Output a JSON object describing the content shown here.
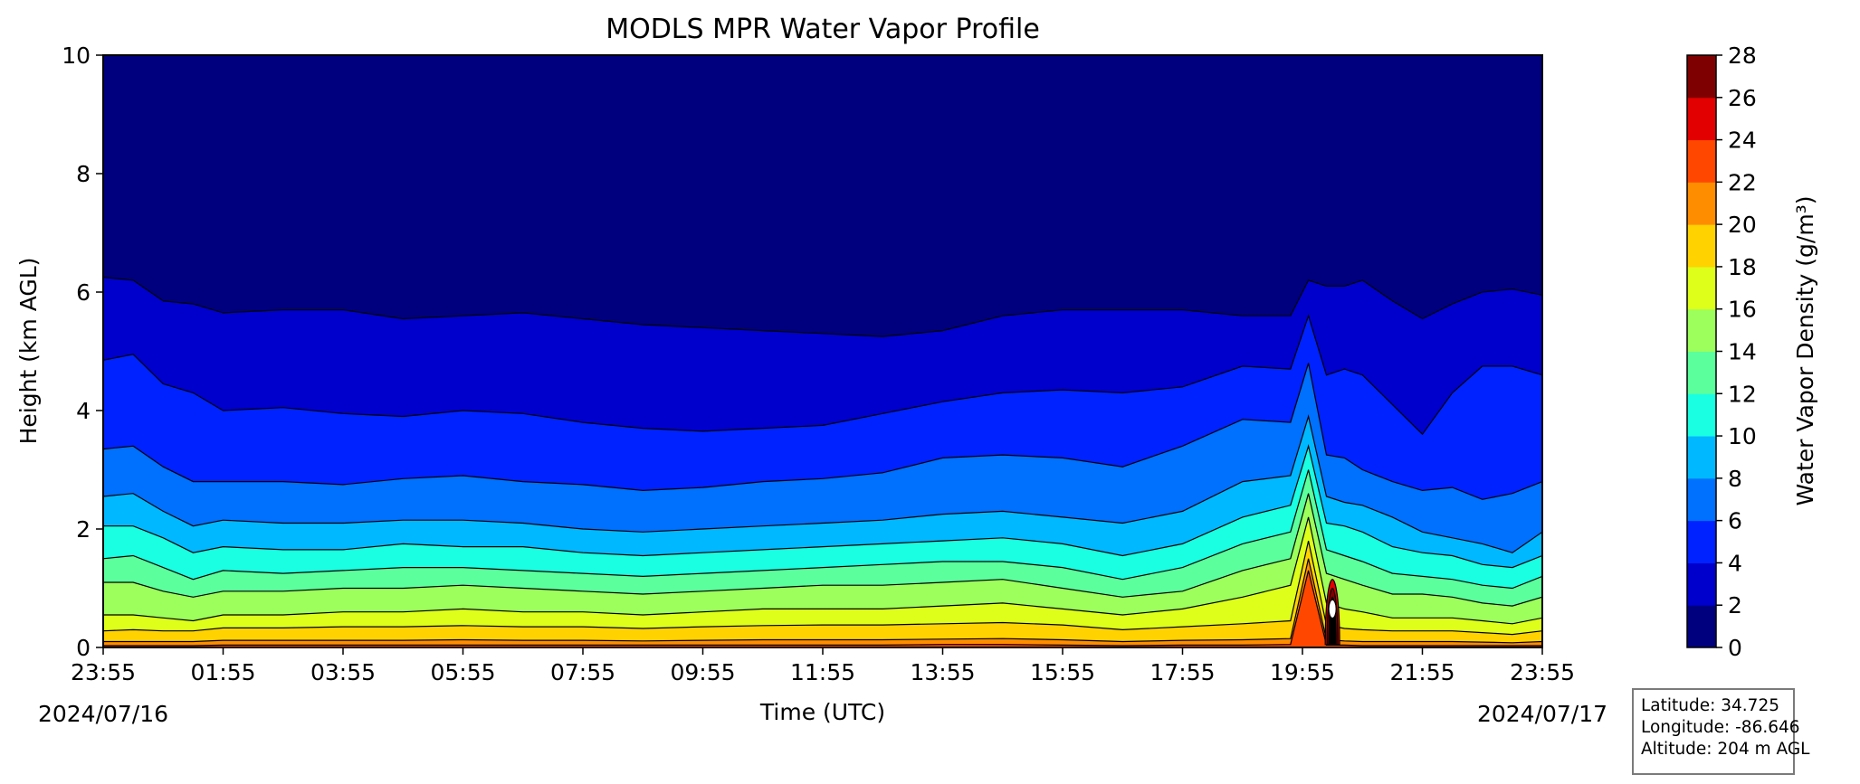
{
  "chart_data": {
    "type": "heatmap",
    "title": "MODLS MPR Water Vapor Profile",
    "xlabel": "Time (UTC)",
    "ylabel": "Height (km AGL)",
    "xticks": [
      "23:55",
      "01:55",
      "03:55",
      "05:55",
      "07:55",
      "09:55",
      "11:55",
      "13:55",
      "15:55",
      "17:55",
      "19:55",
      "21:55",
      "23:55"
    ],
    "xdate_start": "2024/07/16",
    "xdate_end": "2024/07/17",
    "ylim": [
      0,
      10
    ],
    "yticks": [
      0,
      2,
      4,
      6,
      8,
      10
    ],
    "colorbar": {
      "label": "Water Vapor Density (g/m³)",
      "levels": [
        0,
        2,
        4,
        6,
        8,
        10,
        12,
        14,
        16,
        18,
        20,
        22,
        24,
        26,
        28
      ],
      "colors": [
        "#00007f",
        "#0000cd",
        "#0022ff",
        "#0070ff",
        "#00b8ff",
        "#1affe1",
        "#5bff9c",
        "#9cff5b",
        "#ddff1a",
        "#ffd200",
        "#ff8d00",
        "#ff4700",
        "#e30000",
        "#7f0000"
      ]
    },
    "contour_heights_km": {
      "time_hours": [
        0,
        0.5,
        1,
        1.5,
        2,
        3,
        4,
        5,
        6,
        7,
        8,
        9,
        10,
        11,
        12,
        13,
        14,
        15,
        16,
        17,
        18,
        19,
        19.8,
        20.1,
        20.4,
        20.7,
        21,
        21.5,
        22,
        22.5,
        23,
        23.5,
        24
      ],
      "levels": [
        {
          "value": 2,
          "heights": [
            6.25,
            6.2,
            5.85,
            5.8,
            5.65,
            5.7,
            5.7,
            5.55,
            5.6,
            5.65,
            5.55,
            5.45,
            5.4,
            5.35,
            5.3,
            5.25,
            5.35,
            5.6,
            5.7,
            5.7,
            5.7,
            5.6,
            5.6,
            6.2,
            6.1,
            6.1,
            6.2,
            5.85,
            5.55,
            5.8,
            6.0,
            6.05,
            5.95
          ]
        },
        {
          "value": 4,
          "heights": [
            4.85,
            4.95,
            4.45,
            4.3,
            4.0,
            4.05,
            3.95,
            3.9,
            4.0,
            3.95,
            3.8,
            3.7,
            3.65,
            3.7,
            3.75,
            3.95,
            4.15,
            4.3,
            4.35,
            4.3,
            4.4,
            4.75,
            4.7,
            5.6,
            4.6,
            4.7,
            4.6,
            4.1,
            3.6,
            4.3,
            4.75,
            4.75,
            4.6
          ]
        },
        {
          "value": 6,
          "heights": [
            3.35,
            3.4,
            3.05,
            2.8,
            2.8,
            2.8,
            2.75,
            2.85,
            2.9,
            2.8,
            2.75,
            2.65,
            2.7,
            2.8,
            2.85,
            2.95,
            3.2,
            3.25,
            3.2,
            3.05,
            3.4,
            3.85,
            3.8,
            4.8,
            3.25,
            3.2,
            3.0,
            2.8,
            2.65,
            2.7,
            2.5,
            2.6,
            2.8
          ]
        },
        {
          "value": 8,
          "heights": [
            2.55,
            2.6,
            2.3,
            2.05,
            2.15,
            2.1,
            2.1,
            2.15,
            2.15,
            2.1,
            2.0,
            1.95,
            2.0,
            2.05,
            2.1,
            2.15,
            2.25,
            2.3,
            2.2,
            2.1,
            2.3,
            2.8,
            2.9,
            3.9,
            2.55,
            2.45,
            2.4,
            2.2,
            1.95,
            1.85,
            1.75,
            1.6,
            1.95
          ]
        },
        {
          "value": 10,
          "heights": [
            2.05,
            2.05,
            1.85,
            1.6,
            1.7,
            1.65,
            1.65,
            1.75,
            1.7,
            1.7,
            1.6,
            1.55,
            1.6,
            1.65,
            1.7,
            1.75,
            1.8,
            1.85,
            1.75,
            1.55,
            1.75,
            2.2,
            2.4,
            3.4,
            2.1,
            2.05,
            1.95,
            1.7,
            1.6,
            1.55,
            1.4,
            1.35,
            1.55
          ]
        },
        {
          "value": 12,
          "heights": [
            1.5,
            1.55,
            1.35,
            1.15,
            1.3,
            1.25,
            1.3,
            1.35,
            1.35,
            1.3,
            1.25,
            1.2,
            1.25,
            1.3,
            1.35,
            1.4,
            1.45,
            1.45,
            1.35,
            1.15,
            1.35,
            1.75,
            1.95,
            3.0,
            1.65,
            1.55,
            1.45,
            1.25,
            1.2,
            1.15,
            1.05,
            1.0,
            1.2
          ]
        },
        {
          "value": 14,
          "heights": [
            1.1,
            1.1,
            0.95,
            0.85,
            0.95,
            0.95,
            1.0,
            1.0,
            1.05,
            1.0,
            0.95,
            0.9,
            0.95,
            1.0,
            1.05,
            1.05,
            1.1,
            1.15,
            1.0,
            0.85,
            0.95,
            1.3,
            1.5,
            2.6,
            1.25,
            1.15,
            1.05,
            0.9,
            0.9,
            0.85,
            0.75,
            0.7,
            0.85
          ]
        },
        {
          "value": 16,
          "heights": [
            0.55,
            0.55,
            0.5,
            0.45,
            0.55,
            0.55,
            0.6,
            0.6,
            0.65,
            0.6,
            0.6,
            0.55,
            0.6,
            0.65,
            0.65,
            0.65,
            0.7,
            0.75,
            0.65,
            0.55,
            0.65,
            0.85,
            1.05,
            2.2,
            0.75,
            0.65,
            0.6,
            0.5,
            0.5,
            0.5,
            0.45,
            0.4,
            0.5
          ]
        },
        {
          "value": 18,
          "heights": [
            0.28,
            0.3,
            0.28,
            0.28,
            0.33,
            0.33,
            0.35,
            0.35,
            0.37,
            0.35,
            0.35,
            0.32,
            0.35,
            0.37,
            0.38,
            0.38,
            0.4,
            0.42,
            0.38,
            0.3,
            0.35,
            0.4,
            0.45,
            1.8,
            0.38,
            0.32,
            0.3,
            0.28,
            0.28,
            0.28,
            0.25,
            0.22,
            0.28
          ]
        },
        {
          "value": 20,
          "heights": [
            0.1,
            0.1,
            0.1,
            0.1,
            0.12,
            0.12,
            0.12,
            0.12,
            0.13,
            0.12,
            0.12,
            0.11,
            0.12,
            0.13,
            0.13,
            0.13,
            0.14,
            0.15,
            0.13,
            0.1,
            0.12,
            0.13,
            0.15,
            1.5,
            0.13,
            0.11,
            0.1,
            0.1,
            0.1,
            0.1,
            0.09,
            0.08,
            0.1
          ]
        },
        {
          "value": 22,
          "heights": [
            0.03,
            0.03,
            0.03,
            0.03,
            0.04,
            0.04,
            0.04,
            0.04,
            0.04,
            0.04,
            0.04,
            0.04,
            0.04,
            0.04,
            0.04,
            0.04,
            0.05,
            0.05,
            0.04,
            0.03,
            0.04,
            0.04,
            0.05,
            1.3,
            0.04,
            0.04,
            0.03,
            0.03,
            0.03,
            0.03,
            0.03,
            0.03,
            0.03
          ]
        }
      ]
    },
    "plume": {
      "center_hours": 20.5,
      "levels": [
        {
          "value": 24,
          "half_width_hours": 0.12,
          "top_km": 1.15
        },
        {
          "value": 26,
          "half_width_hours": 0.09,
          "top_km": 1.0
        },
        {
          "value": 28,
          "half_width_hours": 0.06,
          "top_km": 0.85
        }
      ]
    },
    "station": {
      "latitude": "Latitude: 34.725",
      "longitude": "Longitude: -86.646",
      "altitude": "Altitude: 204 m AGL"
    }
  }
}
